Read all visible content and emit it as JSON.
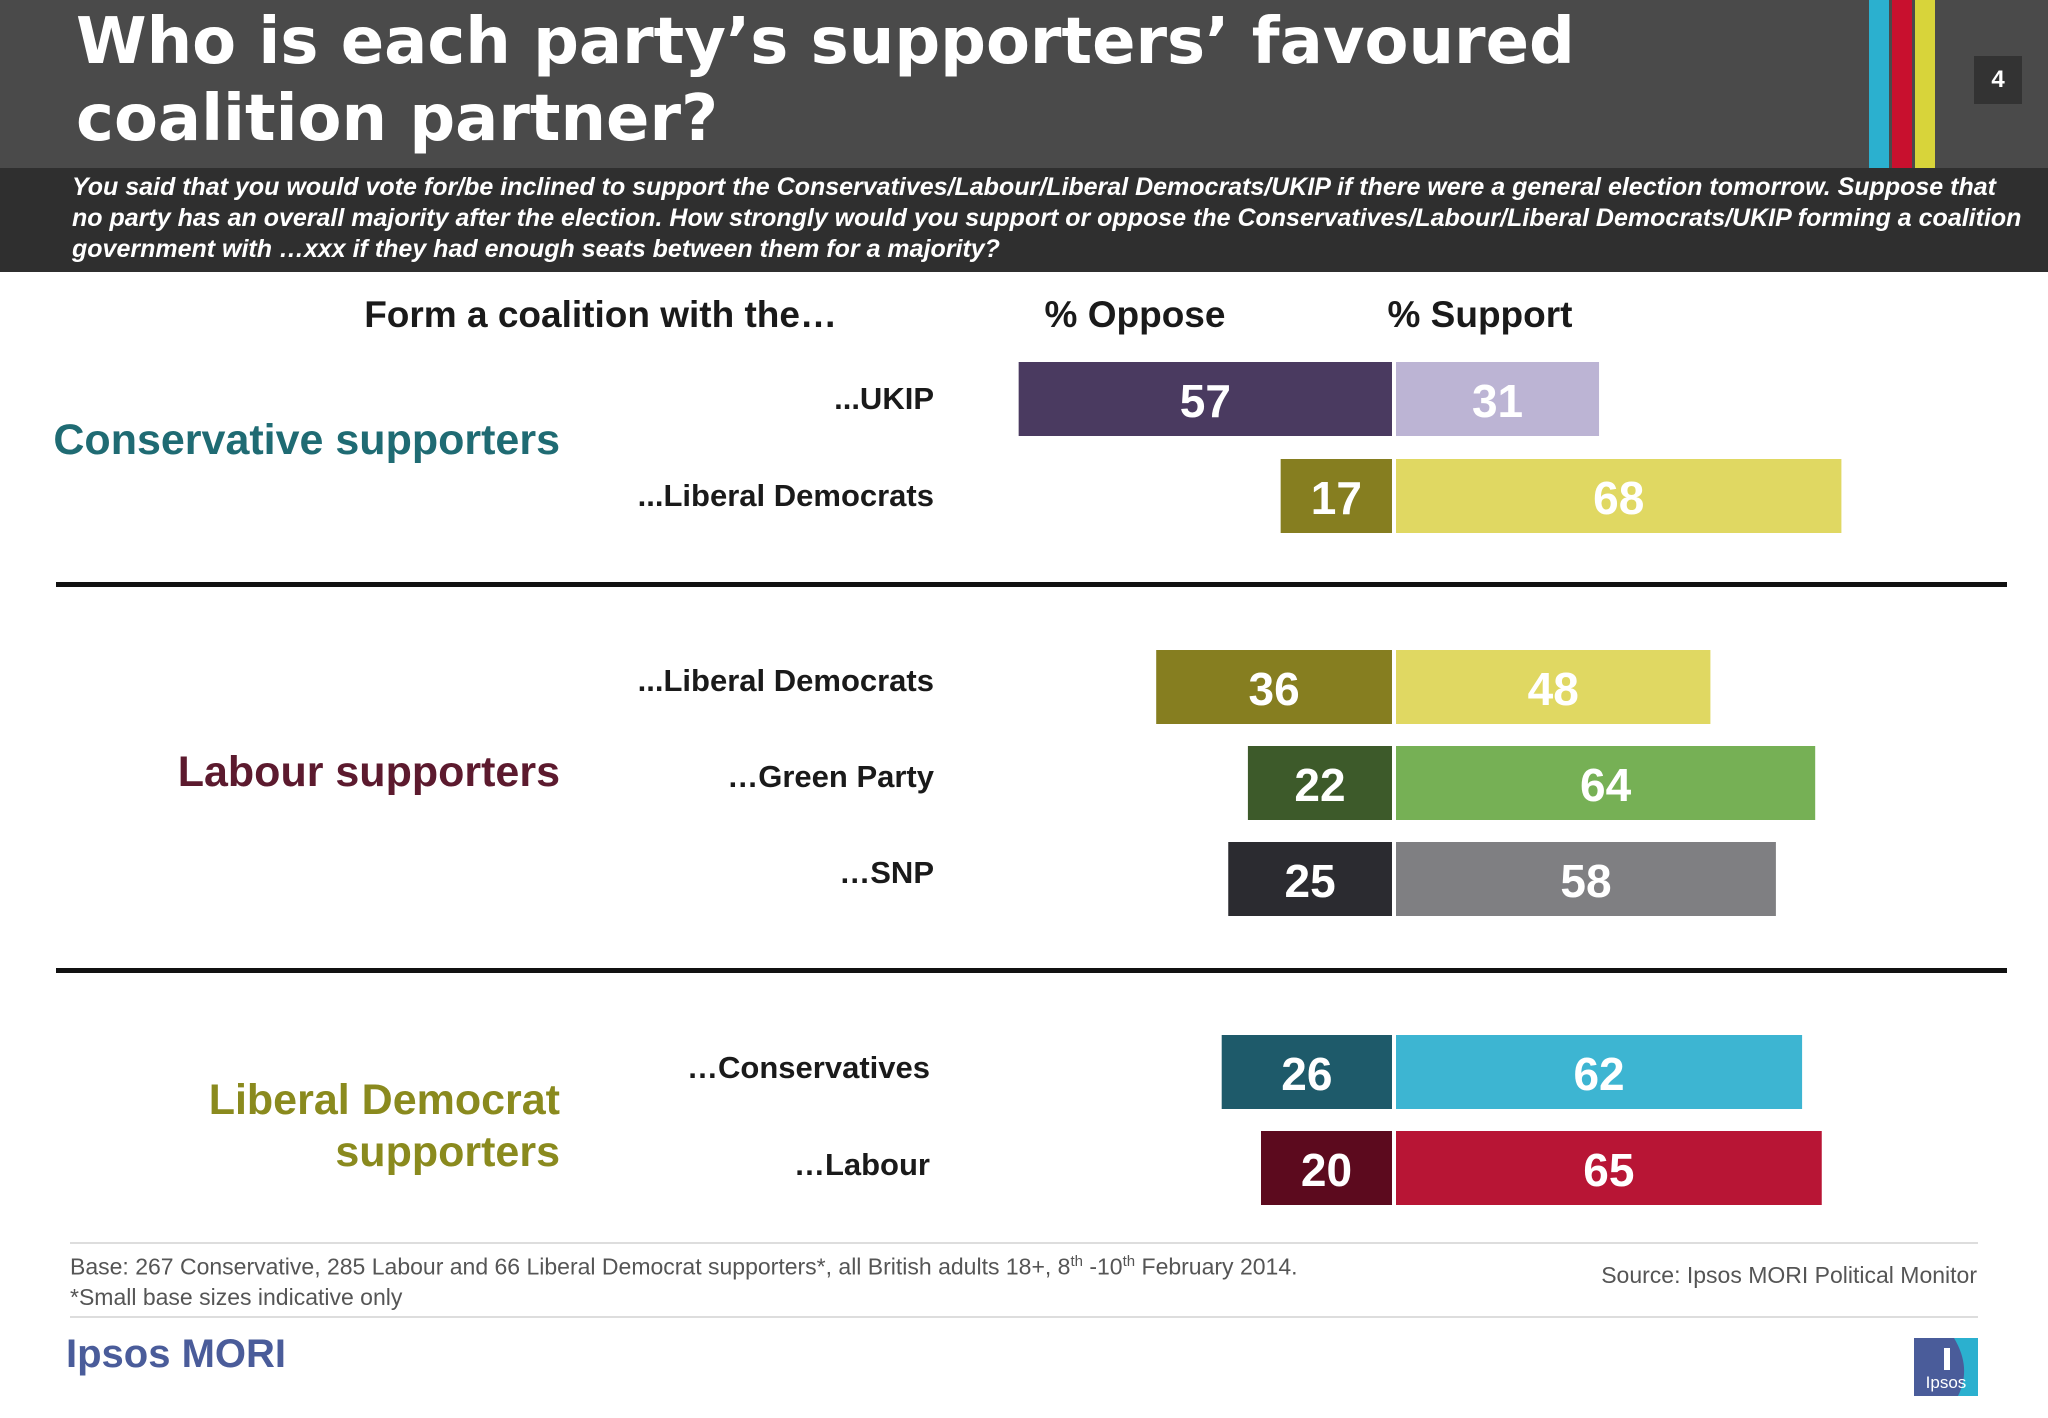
{
  "header": {
    "title": "Who is each party’s supporters’ favoured coalition partner?",
    "page_number": "4",
    "stripe_colors": [
      "#2bb0cf",
      "#c8102e",
      "#d8d43a"
    ]
  },
  "question": "You said that you would vote for/be inclined to support the Conservatives/Labour/Liberal Democrats/UKIP if there were a general election tomorrow. Suppose that no party has an overall majority after the election. How strongly would you support or oppose the Conservatives/Labour/Liberal Democrats/UKIP forming a coalition government with …xxx if they had enough seats between them for a majority?",
  "column_headers": {
    "partner": "Form a coalition with the…",
    "oppose": "% Oppose",
    "support": "% Support"
  },
  "groups": [
    {
      "label": "Conservative supporters",
      "color": "#1f6b73"
    },
    {
      "label": "Labour supporters",
      "color": "#5c1a2e"
    },
    {
      "label_line1": "Liberal Democrat",
      "label_line2": "supporters",
      "color": "#8a8a1e"
    }
  ],
  "chart_data": {
    "type": "bar",
    "orientation": "horizontal-diverging",
    "series": [
      {
        "name": "% Oppose",
        "values": [
          57,
          17,
          36,
          22,
          25,
          26,
          20
        ]
      },
      {
        "name": "% Support",
        "values": [
          31,
          68,
          48,
          64,
          58,
          62,
          65
        ]
      }
    ],
    "rows": [
      {
        "group": "Conservative supporters",
        "label": "...UKIP",
        "oppose": 57,
        "support": 31,
        "oppose_color": "#4a3a60",
        "support_color": "#bcb4d4"
      },
      {
        "group": "Conservative supporters",
        "label": "...Liberal Democrats",
        "oppose": 17,
        "support": 68,
        "oppose_color": "#867e20",
        "support_color": "#e0d862"
      },
      {
        "group": "Labour supporters",
        "label": "...Liberal Democrats",
        "oppose": 36,
        "support": 48,
        "oppose_color": "#867e20",
        "support_color": "#e0d862"
      },
      {
        "group": "Labour supporters",
        "label": "…Green Party",
        "oppose": 22,
        "support": 64,
        "oppose_color": "#3d5a2a",
        "support_color": "#76b055"
      },
      {
        "group": "Labour supporters",
        "label": "…SNP",
        "oppose": 25,
        "support": 58,
        "oppose_color": "#2b2b30",
        "support_color": "#7f7f82"
      },
      {
        "group": "Liberal Democrat supporters",
        "label": "…Conservatives",
        "oppose": 26,
        "support": 62,
        "oppose_color": "#1e5a6a",
        "support_color": "#3db5d2"
      },
      {
        "group": "Liberal Democrat supporters",
        "label": "…Labour",
        "oppose": 20,
        "support": 65,
        "oppose_color": "#5c0a1e",
        "support_color": "#b81535"
      }
    ]
  },
  "footer": {
    "base_part1": "Base: 267 Conservative, 285 Labour and 66 Liberal Democrat supporters*, all British adults 18+, 8",
    "base_sup1": "th",
    "base_part2": " -10",
    "base_sup2": "th",
    "base_part3": " February 2014.",
    "small_base_note": "*Small base sizes indicative only",
    "source": "Source: Ipsos MORI Political Monitor",
    "logo_text": "Ipsos MORI",
    "badge_text": "Ipsos"
  }
}
